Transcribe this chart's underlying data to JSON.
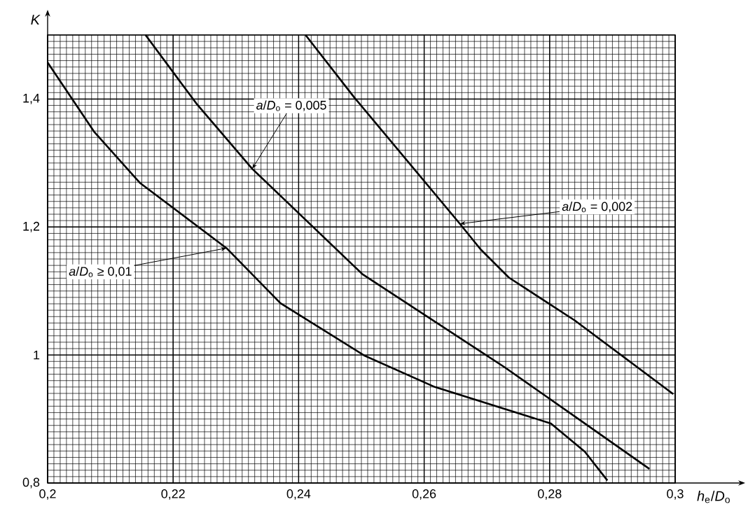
{
  "chart_data": {
    "type": "line",
    "xlabel": "*h*$_{e}$/*D*$_{o}$",
    "ylabel": "K",
    "xlim": [
      0.2,
      0.3
    ],
    "ylim": [
      0.8,
      1.5
    ],
    "xticks": [
      {
        "value": 0.2,
        "label": "0,2"
      },
      {
        "value": 0.22,
        "label": "0,22"
      },
      {
        "value": 0.24,
        "label": "0,24"
      },
      {
        "value": 0.26,
        "label": "0,26"
      },
      {
        "value": 0.28,
        "label": "0,28"
      },
      {
        "value": 0.3,
        "label": "0,3"
      }
    ],
    "yticks": [
      {
        "value": 0.8,
        "label": "0,8"
      },
      1,
      {
        "value": 1.2,
        "label": "1,2"
      },
      {
        "value": 1.4,
        "label": "1,4"
      }
    ],
    "grid": true,
    "line_style": "solid",
    "annotations": [
      {
        "text": "*a*/*D*$_{o}$ ≥ 0,01",
        "x": 0.2285,
        "y": 1.167
      },
      {
        "text": "*a*/*D*$_{o}$ = 0,005",
        "x": 0.2326,
        "y": 1.291
      },
      {
        "text": "*a*/*D*$_{o}$ = 0,002",
        "x": 0.2657,
        "y": 1.205
      }
    ],
    "series": [
      {
        "color": "#000000",
        "x": [
          0.2,
          0.2074,
          0.2147,
          0.2285,
          0.2371,
          0.2505,
          0.2617,
          0.2802,
          0.2856,
          0.2892
        ],
        "values": [
          1.457,
          1.349,
          1.269,
          1.167,
          1.081,
          0.999,
          0.95,
          0.893,
          0.849,
          0.804
        ]
      },
      {
        "color": "#000000",
        "x": [
          0.2156,
          0.2237,
          0.2326,
          0.2502,
          0.2728,
          0.284,
          0.2959
        ],
        "values": [
          1.5,
          1.393,
          1.291,
          1.126,
          0.981,
          0.904,
          0.822
        ]
      },
      {
        "color": "#000000",
        "x": [
          0.2411,
          0.2489,
          0.2657,
          0.269,
          0.2735,
          0.284,
          0.2997
        ],
        "values": [
          1.5,
          1.402,
          1.205,
          1.165,
          1.121,
          1.054,
          0.939
        ]
      }
    ]
  }
}
